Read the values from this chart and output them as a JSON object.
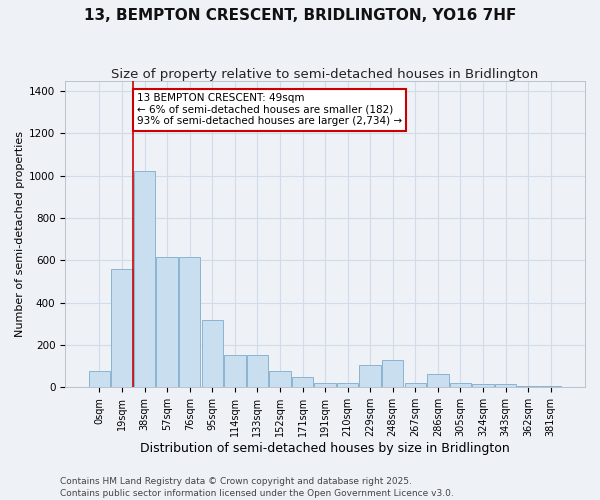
{
  "title": "13, BEMPTON CRESCENT, BRIDLINGTON, YO16 7HF",
  "subtitle": "Size of property relative to semi-detached houses in Bridlington",
  "xlabel": "Distribution of semi-detached houses by size in Bridlington",
  "ylabel": "Number of semi-detached properties",
  "categories": [
    "0sqm",
    "19sqm",
    "38sqm",
    "57sqm",
    "76sqm",
    "95sqm",
    "114sqm",
    "133sqm",
    "152sqm",
    "171sqm",
    "191sqm",
    "210sqm",
    "229sqm",
    "248sqm",
    "267sqm",
    "286sqm",
    "305sqm",
    "324sqm",
    "343sqm",
    "362sqm",
    "381sqm"
  ],
  "values": [
    75,
    560,
    1020,
    615,
    615,
    320,
    155,
    155,
    75,
    50,
    20,
    20,
    105,
    130,
    20,
    65,
    20,
    15,
    15,
    8,
    8
  ],
  "bar_color": "#c9dff0",
  "bar_edge_color": "#8ab4d4",
  "grid_color": "#d0dce8",
  "background_color": "#eef2f7",
  "property_line_color": "#cc0000",
  "annotation_text": "13 BEMPTON CRESCENT: 49sqm\n← 6% of semi-detached houses are smaller (182)\n93% of semi-detached houses are larger (2,734) →",
  "annotation_box_facecolor": "#ffffff",
  "annotation_box_edgecolor": "#cc0000",
  "ylim": [
    0,
    1450
  ],
  "yticks": [
    0,
    200,
    400,
    600,
    800,
    1000,
    1200,
    1400
  ],
  "footer": "Contains HM Land Registry data © Crown copyright and database right 2025.\nContains public sector information licensed under the Open Government Licence v3.0.",
  "title_fontsize": 11,
  "subtitle_fontsize": 9.5,
  "xlabel_fontsize": 9,
  "ylabel_fontsize": 8,
  "tick_fontsize": 7,
  "annot_fontsize": 7.5,
  "footer_fontsize": 6.5
}
